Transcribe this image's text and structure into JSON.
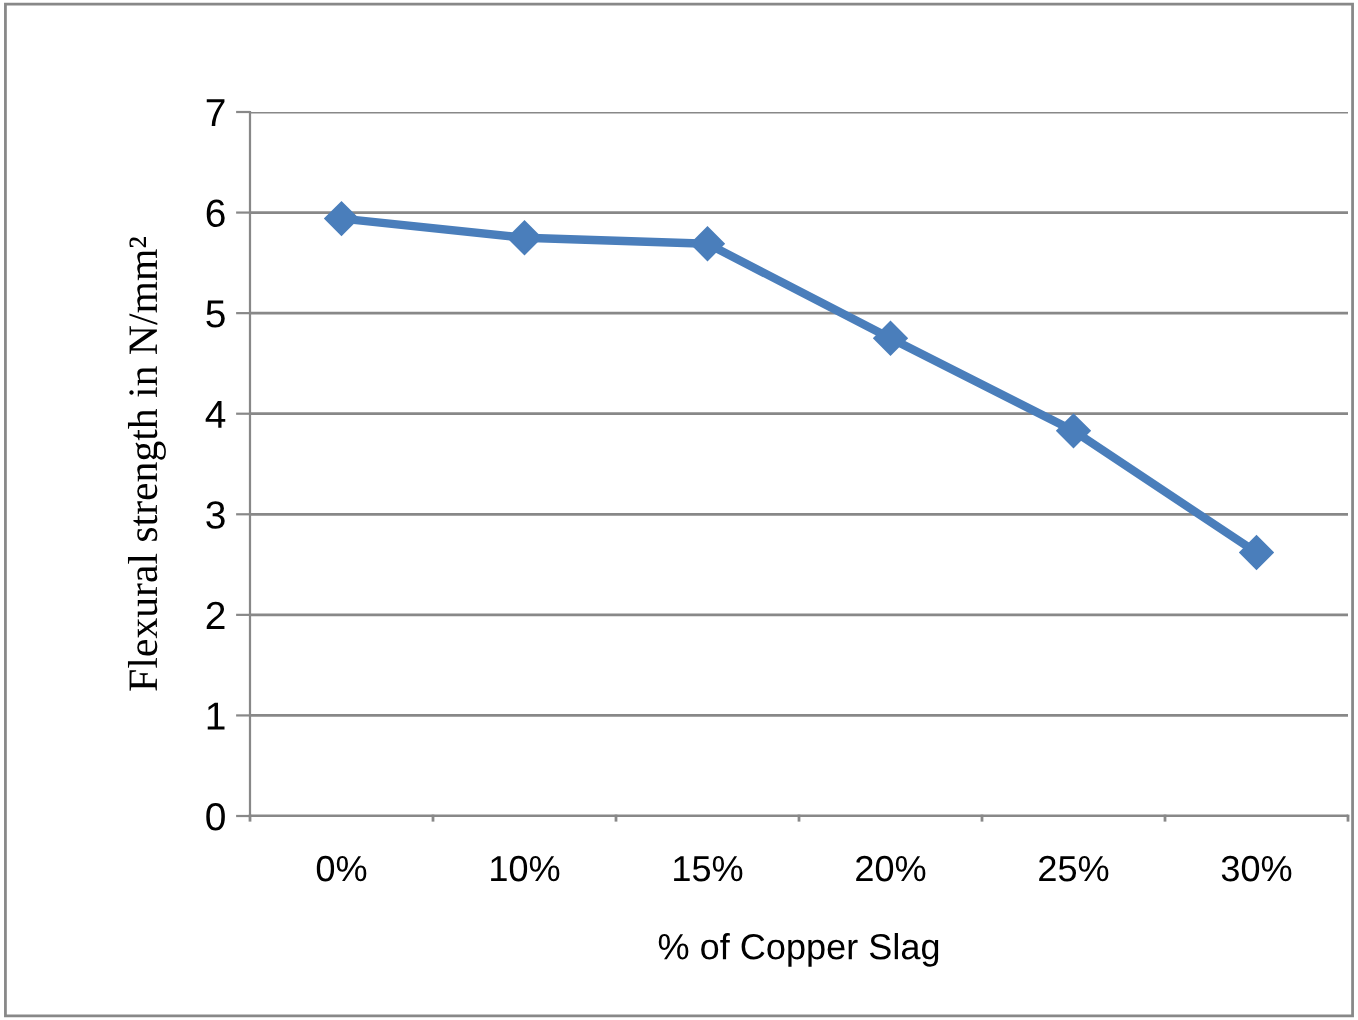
{
  "chart_data": {
    "type": "line",
    "xlabel": "% of Copper Slag",
    "ylabel": "Flexural strength in N/mm²",
    "categories": [
      "0%",
      "10%",
      "15%",
      "20%",
      "25%",
      "30%"
    ],
    "series": [
      {
        "color": "#4a7ebb",
        "values": [
          5.94,
          5.75,
          5.69,
          4.75,
          3.83,
          2.62
        ]
      }
    ],
    "ylim": [
      0,
      7
    ],
    "yticks": [
      0,
      1,
      2,
      3,
      4,
      5,
      6,
      7
    ],
    "grid": "y",
    "marker": "diamond",
    "line_style": "solid",
    "legend": false
  }
}
